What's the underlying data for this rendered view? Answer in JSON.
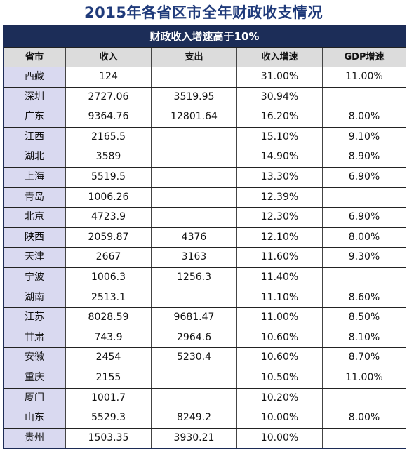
{
  "title": "2015年各省区市全年财政收支情况",
  "banner": "财政收入增速高于10%",
  "columns": [
    "省市",
    "收入",
    "支出",
    "收入增速",
    "GDP增速"
  ],
  "rows": [
    {
      "province": "西藏",
      "income": "124",
      "expense": "",
      "income_growth": "31.00%",
      "gdp_growth": "11.00%"
    },
    {
      "province": "深圳",
      "income": "2727.06",
      "expense": "3519.95",
      "income_growth": "30.94%",
      "gdp_growth": ""
    },
    {
      "province": "广东",
      "income": "9364.76",
      "expense": "12801.64",
      "income_growth": "16.20%",
      "gdp_growth": "8.00%"
    },
    {
      "province": "江西",
      "income": "2165.5",
      "expense": "",
      "income_growth": "15.10%",
      "gdp_growth": "9.10%"
    },
    {
      "province": "湖北",
      "income": "3589",
      "expense": "",
      "income_growth": "14.90%",
      "gdp_growth": "8.90%"
    },
    {
      "province": "上海",
      "income": "5519.5",
      "expense": "",
      "income_growth": "13.30%",
      "gdp_growth": "6.90%"
    },
    {
      "province": "青岛",
      "income": "1006.26",
      "expense": "",
      "income_growth": "12.39%",
      "gdp_growth": ""
    },
    {
      "province": "北京",
      "income": "4723.9",
      "expense": "",
      "income_growth": "12.30%",
      "gdp_growth": "6.90%"
    },
    {
      "province": "陕西",
      "income": "2059.87",
      "expense": "4376",
      "income_growth": "12.10%",
      "gdp_growth": "8.00%"
    },
    {
      "province": "天津",
      "income": "2667",
      "expense": "3163",
      "income_growth": "11.60%",
      "gdp_growth": "9.30%"
    },
    {
      "province": "宁波",
      "income": "1006.3",
      "expense": "1256.3",
      "income_growth": "11.40%",
      "gdp_growth": ""
    },
    {
      "province": "湖南",
      "income": "2513.1",
      "expense": "",
      "income_growth": "11.10%",
      "gdp_growth": "8.60%"
    },
    {
      "province": "江苏",
      "income": "8028.59",
      "expense": "9681.47",
      "income_growth": "11.00%",
      "gdp_growth": "8.50%"
    },
    {
      "province": "甘肃",
      "income": "743.9",
      "expense": "2964.6",
      "income_growth": "10.60%",
      "gdp_growth": "8.10%"
    },
    {
      "province": "安徽",
      "income": "2454",
      "expense": "5230.4",
      "income_growth": "10.60%",
      "gdp_growth": "8.70%"
    },
    {
      "province": "重庆",
      "income": "2155",
      "expense": "",
      "income_growth": "10.50%",
      "gdp_growth": "11.00%"
    },
    {
      "province": "厦门",
      "income": "1001.7",
      "expense": "",
      "income_growth": "10.20%",
      "gdp_growth": ""
    },
    {
      "province": "山东",
      "income": "5529.3",
      "expense": "8249.2",
      "income_growth": "10.00%",
      "gdp_growth": "8.00%"
    },
    {
      "province": "贵州",
      "income": "1503.35",
      "expense": "3930.21",
      "income_growth": "10.00%",
      "gdp_growth": ""
    }
  ]
}
